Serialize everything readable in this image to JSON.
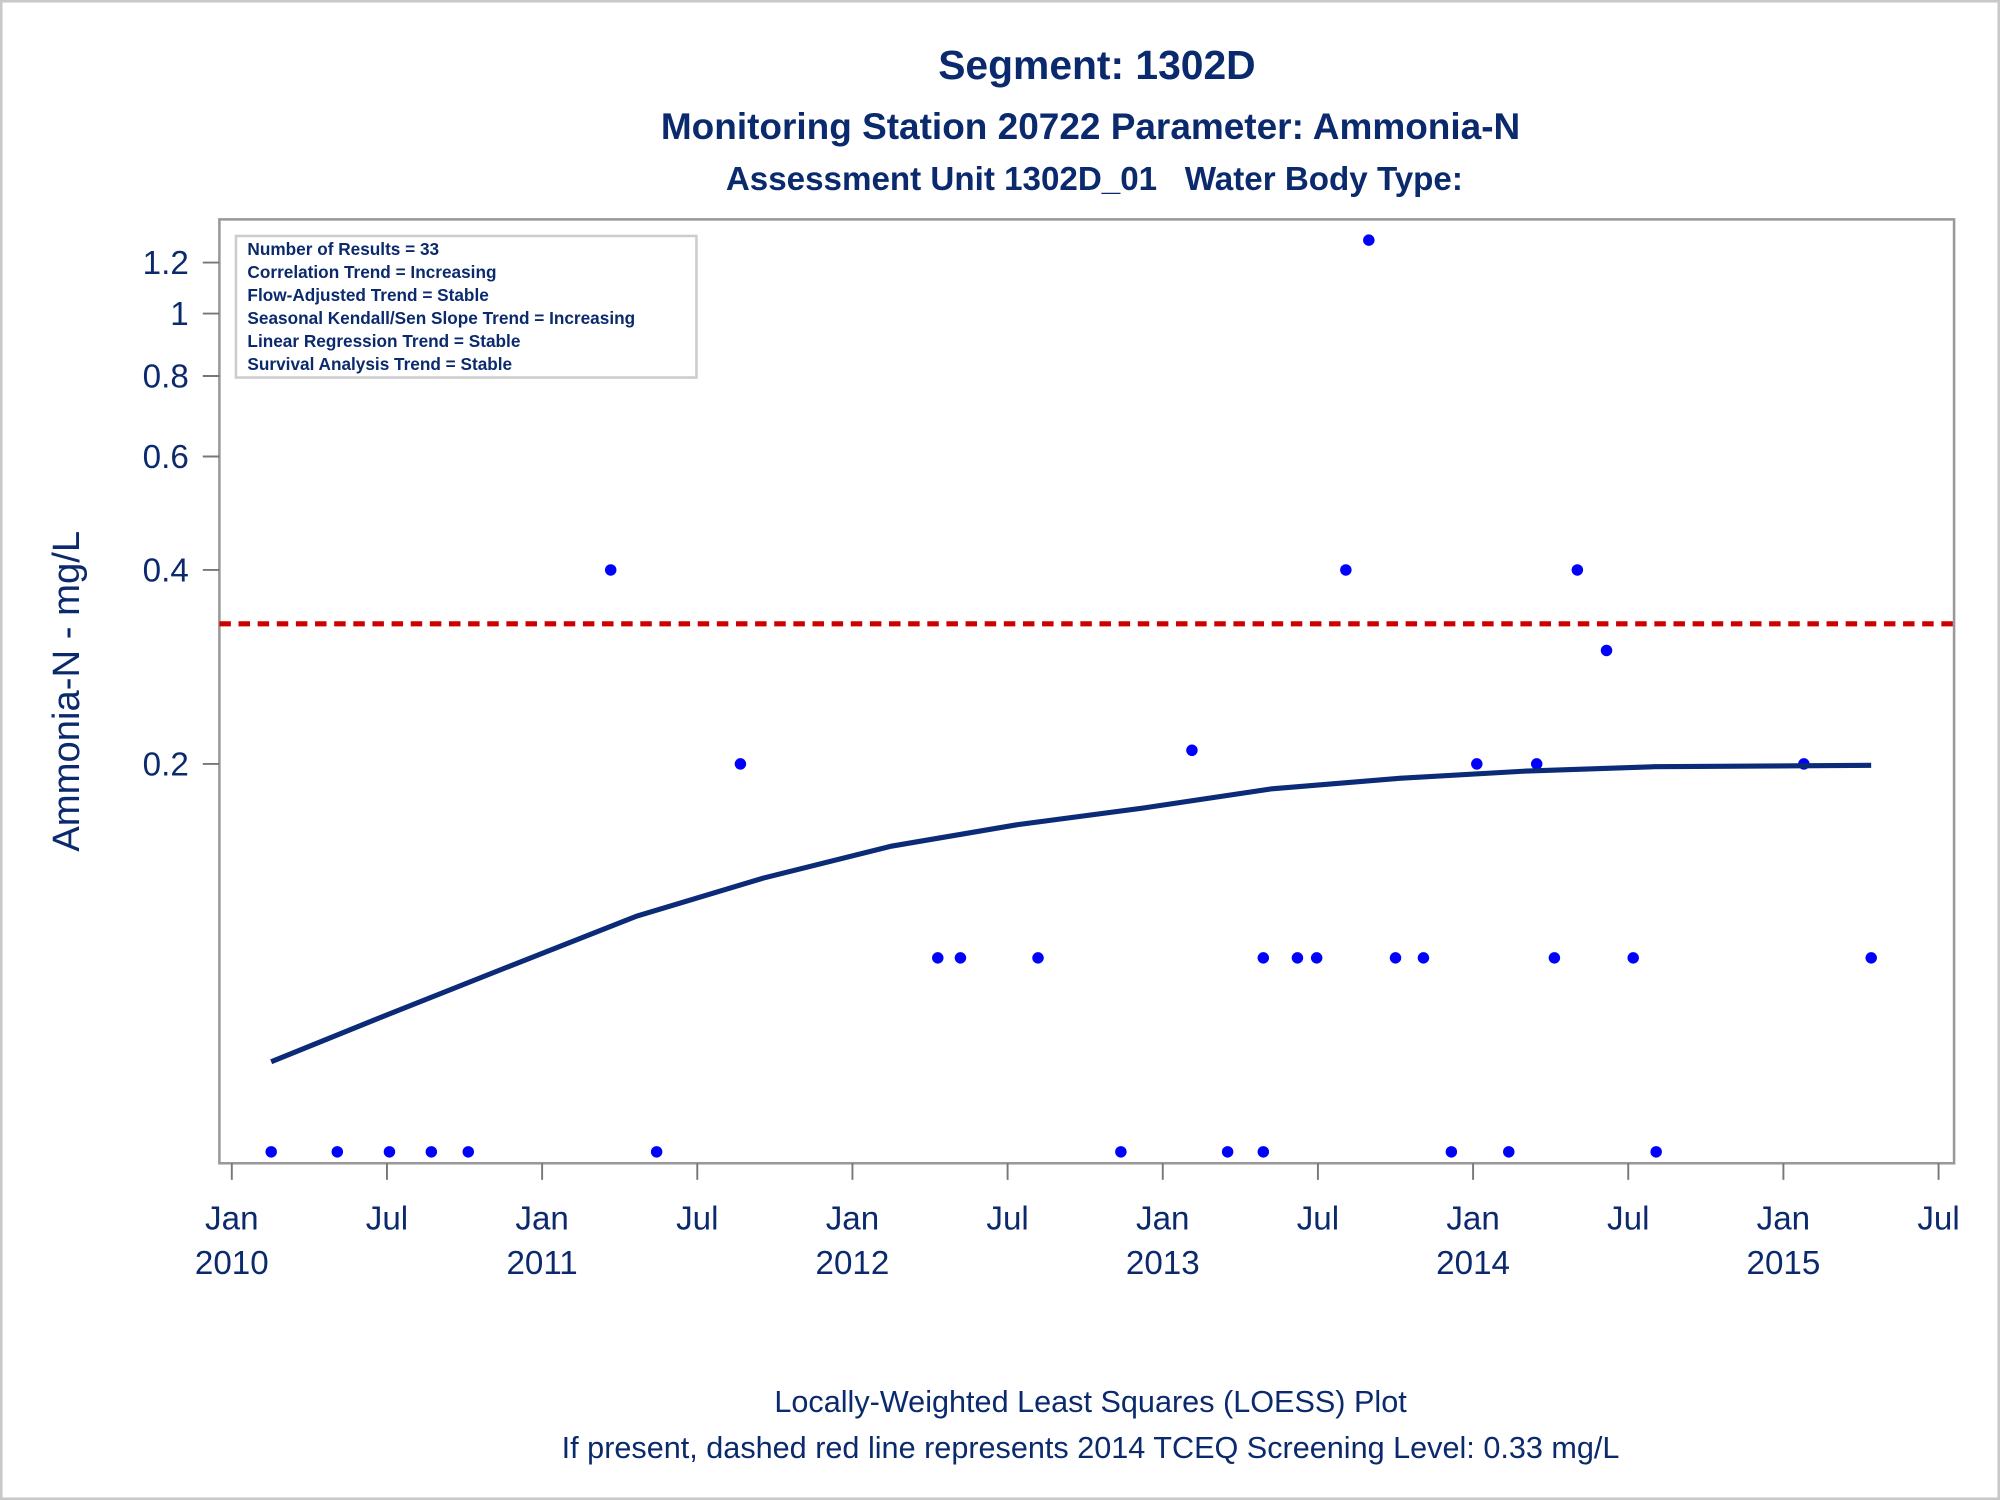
{
  "chart_data": {
    "type": "scatter",
    "title": "Segment: 1302D",
    "subtitle": "Monitoring Station 20722 Parameter: Ammonia-N",
    "subtitle2": "Assessment Unit 1302D_01   Water Body Type:",
    "y_label": "Ammonia-N - mg/L",
    "yscale": "log",
    "xlim": [
      2009.96,
      2015.55
    ],
    "xticks": [
      {
        "value": 2010,
        "label": "Jan 2010"
      },
      {
        "value": 2010.5,
        "label": "Jul"
      },
      {
        "value": 2011,
        "label": "Jan 2011"
      },
      {
        "value": 2011.5,
        "label": "Jul"
      },
      {
        "value": 2012,
        "label": "Jan 2012"
      },
      {
        "value": 2012.5,
        "label": "Jul"
      },
      {
        "value": 2013,
        "label": "Jan 2013"
      },
      {
        "value": 2013.5,
        "label": "Jul"
      },
      {
        "value": 2014,
        "label": "Jan 2014"
      },
      {
        "value": 2014.5,
        "label": "Jul"
      },
      {
        "value": 2015,
        "label": "Jan 2015"
      },
      {
        "value": 2015.5,
        "label": "Jul"
      }
    ],
    "ylim": [
      0.048,
      1.4
    ],
    "yticks": [
      0.2,
      0.4,
      0.6,
      0.8,
      1,
      1.2
    ],
    "series": [
      {
        "kind": "points",
        "color": "#0000ff",
        "x": [
          2010.127,
          2010.34,
          2010.508,
          2010.643,
          2010.762,
          2011.369,
          2012.865,
          2013.209,
          2013.324,
          2013.93,
          2014.115,
          2014.59,
          2011.221,
          2013.59,
          2014.336,
          2011.639,
          2014.012,
          2014.205,
          2015.066,
          2013.094,
          2013.664,
          2014.43,
          2012.275,
          2012.348,
          2012.598,
          2013.324,
          2013.434,
          2013.496,
          2013.75,
          2013.84,
          2014.262,
          2014.516,
          2015.283
        ],
        "values": [
          0.05,
          0.05,
          0.05,
          0.05,
          0.05,
          0.05,
          0.05,
          0.05,
          0.05,
          0.05,
          0.05,
          0.05,
          0.4,
          0.4,
          0.4,
          0.2,
          0.2,
          0.2,
          0.2,
          0.21,
          1.3,
          0.3,
          0.1,
          0.1,
          0.1,
          0.1,
          0.1,
          0.1,
          0.1,
          0.1,
          0.1,
          0.1,
          0.1
        ]
      },
      {
        "kind": "line",
        "color": "#0b2a78",
        "x": [
          2010.127,
          2010.484,
          2010.893,
          2011.303,
          2011.713,
          2012.123,
          2012.533,
          2012.943,
          2013.352,
          2013.762,
          2014.172,
          2014.582,
          2015.283
        ],
        "values": [
          0.069,
          0.081,
          0.097,
          0.116,
          0.133,
          0.149,
          0.161,
          0.171,
          0.183,
          0.19,
          0.195,
          0.198,
          0.199
        ]
      }
    ],
    "screening_level": 0.33,
    "screening_color": "#cc0000",
    "stats": [
      "Number of Results = 33",
      "Correlation Trend = Increasing",
      "Flow-Adjusted Trend = Stable",
      "Seasonal Kendall/Sen Slope Trend = Increasing",
      "Linear Regression Trend = Stable",
      "Survival Analysis Trend = Stable"
    ],
    "footnotes": [
      "Locally-Weighted Least Squares (LOESS) Plot",
      "If present, dashed red line represents 2014 TCEQ Screening Level: 0.33 mg/L"
    ]
  }
}
